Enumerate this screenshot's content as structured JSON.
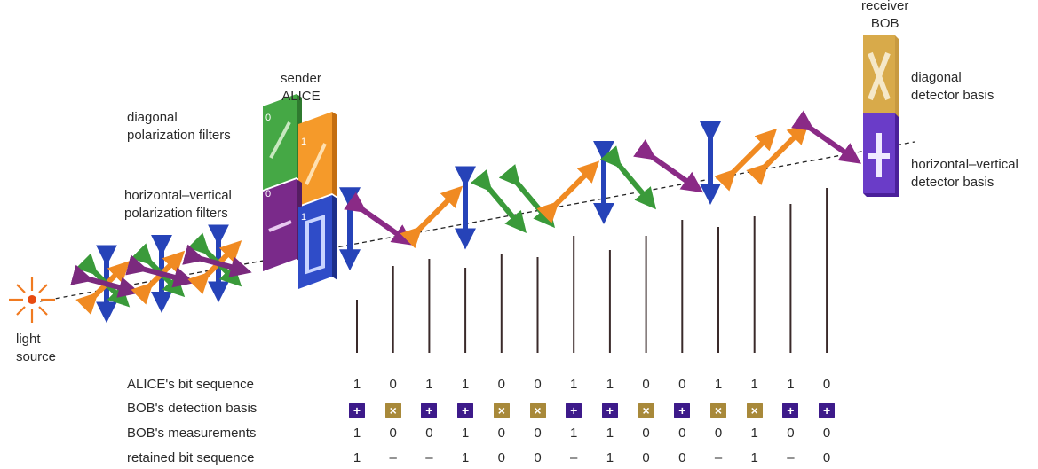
{
  "labels": {
    "light_source": [
      "light",
      "source"
    ],
    "sender": [
      "sender",
      "ALICE"
    ],
    "receiver": [
      "receiver",
      "BOB"
    ],
    "diagonal_filters": [
      "diagonal",
      "polarization filters"
    ],
    "hv_filters": [
      "horizontal–vertical",
      "polarization filters"
    ],
    "diagonal_detector": [
      "diagonal",
      "detector basis"
    ],
    "hv_detector": [
      "horizontal–vertical",
      "detector basis"
    ],
    "filter_bits": [
      "0",
      "1",
      "0",
      "1"
    ]
  },
  "table": {
    "row_labels": [
      "ALICE's bit sequence",
      "BOB's detection basis",
      "BOB's measurements",
      "retained bit sequence"
    ],
    "alice_bits": [
      "1",
      "0",
      "1",
      "1",
      "0",
      "0",
      "1",
      "1",
      "0",
      "0",
      "1",
      "1",
      "1",
      "0"
    ],
    "bob_basis": [
      "hv",
      "dg",
      "hv",
      "hv",
      "dg",
      "dg",
      "hv",
      "hv",
      "dg",
      "hv",
      "dg",
      "dg",
      "hv",
      "hv"
    ],
    "bob_basis_symbols": {
      "hv": "+",
      "dg": "×"
    },
    "bob_measurements": [
      "1",
      "0",
      "0",
      "1",
      "0",
      "0",
      "1",
      "1",
      "0",
      "0",
      "0",
      "1",
      "0",
      "0"
    ],
    "retained_bits": [
      "1",
      "–",
      "–",
      "1",
      "0",
      "0",
      "–",
      "1",
      "0",
      "0",
      "–",
      "1",
      "–",
      "0"
    ]
  },
  "photons": [
    "vertical",
    "diag-down",
    "diag-up",
    "vertical",
    "diag-down",
    "diag-down",
    "diag-up",
    "vertical",
    "diag-down",
    "diag-down",
    "vertical",
    "diag-up",
    "diag-up",
    "diag-down"
  ],
  "colors": {
    "vertical": "#2643b8",
    "horizontal": "#7b2a7e",
    "diag_up": "#f08a22",
    "diag_down": "#8a2a86",
    "green": "#3a9a3a",
    "beam": "#222222",
    "light": "#e84a10"
  }
}
